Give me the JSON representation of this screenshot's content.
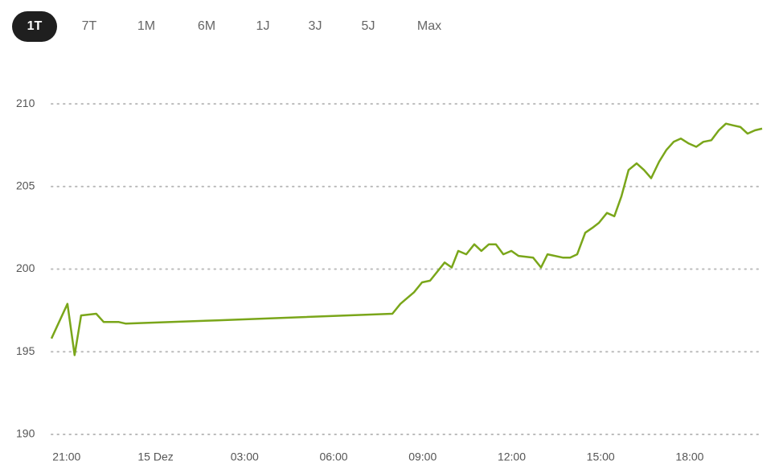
{
  "range_buttons": [
    {
      "label": "1T",
      "selected": true
    },
    {
      "label": "7T",
      "selected": false
    },
    {
      "label": "1M",
      "selected": false
    },
    {
      "label": "6M",
      "selected": false
    },
    {
      "label": "1J",
      "selected": false
    },
    {
      "label": "3J",
      "selected": false
    },
    {
      "label": "5J",
      "selected": false
    },
    {
      "label": "Max",
      "selected": false
    }
  ],
  "chart_data": {
    "type": "line",
    "color": "#7aa61a",
    "grid": true,
    "grid_style": "dotted",
    "x": [
      20.49,
      21.03,
      21.27,
      21.49,
      22.0,
      22.25,
      22.76,
      23.0,
      26.07,
      31.98,
      32.25,
      32.71,
      32.98,
      33.25,
      33.74,
      33.98,
      34.2,
      34.47,
      34.74,
      34.98,
      35.23,
      35.47,
      35.72,
      35.99,
      36.23,
      36.72,
      36.99,
      37.21,
      37.72,
      37.97,
      38.21,
      38.48,
      38.72,
      38.94,
      39.21,
      39.46,
      39.7,
      39.94,
      40.21,
      40.46,
      40.7,
      40.97,
      41.21,
      41.46,
      41.7,
      41.97,
      42.22,
      42.46,
      42.73,
      42.98,
      43.22,
      43.46,
      43.71,
      43.95,
      44.2,
      44.44
    ],
    "values": [
      195.8,
      197.9,
      194.8,
      197.2,
      197.3,
      196.8,
      196.8,
      196.7,
      196.9,
      197.3,
      197.9,
      198.6,
      199.2,
      199.3,
      200.4,
      200.1,
      201.1,
      200.9,
      201.5,
      201.1,
      201.5,
      201.5,
      200.9,
      201.1,
      200.8,
      200.7,
      200.1,
      200.9,
      200.7,
      200.7,
      200.9,
      202.2,
      202.5,
      202.8,
      203.4,
      203.2,
      204.4,
      206.0,
      206.4,
      206.0,
      205.5,
      206.5,
      207.2,
      207.7,
      207.9,
      207.6,
      207.4,
      207.7,
      207.8,
      208.4,
      208.8,
      208.7,
      208.6,
      208.2,
      208.4,
      208.5
    ],
    "xlim": [
      20.49,
      44.44
    ],
    "xticks": [
      {
        "value": 21,
        "label": "21:00"
      },
      {
        "value": 24,
        "label": "15 Dez"
      },
      {
        "value": 27,
        "label": "03:00"
      },
      {
        "value": 30,
        "label": "06:00"
      },
      {
        "value": 33,
        "label": "09:00"
      },
      {
        "value": 36,
        "label": "12:00"
      },
      {
        "value": 39,
        "label": "15:00"
      },
      {
        "value": 42,
        "label": "18:00"
      }
    ],
    "ylim": [
      190,
      212
    ],
    "yticks": [
      190,
      195,
      200,
      205,
      210
    ]
  }
}
